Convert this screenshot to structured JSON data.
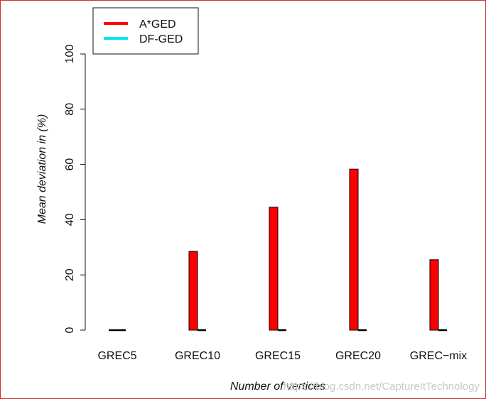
{
  "chart_data": {
    "type": "bar",
    "categories": [
      "GREC5",
      "GREC10",
      "GREC15",
      "GREC20",
      "GREC−mix"
    ],
    "series": [
      {
        "name": "A*GED",
        "color": "#ff0000",
        "values": [
          0,
          28.5,
          44.5,
          58.3,
          25.5
        ]
      },
      {
        "name": "DF-GED",
        "color": "#00e5ee",
        "values": [
          0,
          0,
          0,
          0,
          0
        ]
      }
    ],
    "xlabel": "Number of vertices",
    "ylabel": "Mean deviation in (%)",
    "ylim": [
      0,
      100
    ],
    "yticks": [
      0,
      20,
      40,
      60,
      80,
      100
    ],
    "legend_position": "top-left",
    "grid": false
  },
  "watermark": "https://blog.csdn.net/CaptureItTechnology"
}
